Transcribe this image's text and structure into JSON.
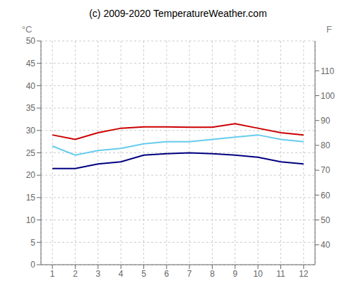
{
  "chart_data": {
    "type": "line",
    "title": "(c) 2009-2020 TemperatureWeather.com",
    "ylabel": "°C",
    "y2label": "F",
    "x": [
      1,
      2,
      3,
      4,
      5,
      6,
      7,
      8,
      9,
      10,
      11,
      12
    ],
    "series": [
      {
        "color": "#cc0000",
        "values": [
          29,
          28,
          29.5,
          30.5,
          30.8,
          30.8,
          30.7,
          30.7,
          31.5,
          30.5,
          29.5,
          29
        ]
      },
      {
        "color": "#66ccee",
        "values": [
          26.5,
          24.5,
          25.5,
          26,
          27,
          27.5,
          27.5,
          28,
          28.5,
          29,
          28,
          27.5
        ]
      },
      {
        "color": "#000080",
        "values": [
          21.5,
          21.5,
          22.5,
          23,
          24.5,
          24.8,
          25,
          24.8,
          24.5,
          24,
          23,
          22.5
        ]
      }
    ],
    "xlim": [
      0.5,
      12.5
    ],
    "xticks": [
      1,
      2,
      3,
      4,
      5,
      6,
      7,
      8,
      9,
      10,
      11,
      12
    ],
    "ylim": [
      0,
      50
    ],
    "yticks": [
      0,
      5,
      10,
      15,
      20,
      25,
      30,
      35,
      40,
      45,
      50
    ],
    "y2lim": [
      32,
      122
    ],
    "y2ticks": [
      40,
      50,
      60,
      70,
      80,
      90,
      100,
      110
    ],
    "grid": true
  }
}
